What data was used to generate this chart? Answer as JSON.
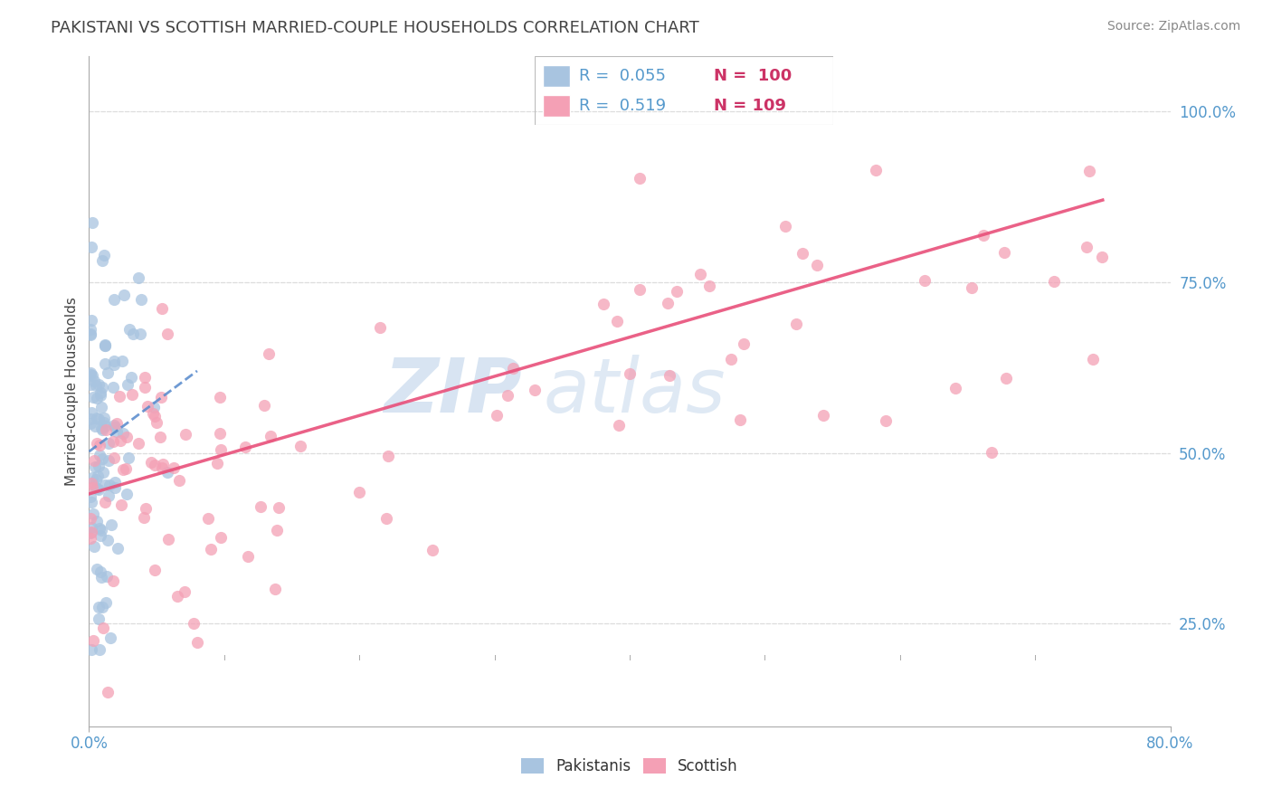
{
  "title": "PAKISTANI VS SCOTTISH MARRIED-COUPLE HOUSEHOLDS CORRELATION CHART",
  "source_text": "Source: ZipAtlas.com",
  "ylabel": "Married-couple Households",
  "right_yticks": [
    "25.0%",
    "50.0%",
    "75.0%",
    "100.0%"
  ],
  "right_ytick_vals": [
    0.25,
    0.5,
    0.75,
    1.0
  ],
  "xlim": [
    0.0,
    0.8
  ],
  "ylim": [
    0.1,
    1.08
  ],
  "pakistanis_color": "#a8c4e0",
  "scottish_color": "#f4a0b5",
  "pakistanis_line_color": "#5588cc",
  "scottish_line_color": "#e8507a",
  "watermark_color": "#c8d8ea",
  "legend_box_color": "#f0f4f8",
  "grid_color": "#dddddd",
  "tick_color": "#aaaaaa",
  "axis_label_color": "#5599cc",
  "title_color": "#444444",
  "source_color": "#888888",
  "ylabel_color": "#444444",
  "legend_r_color": "#5599cc",
  "legend_n_color": "#cc3366"
}
